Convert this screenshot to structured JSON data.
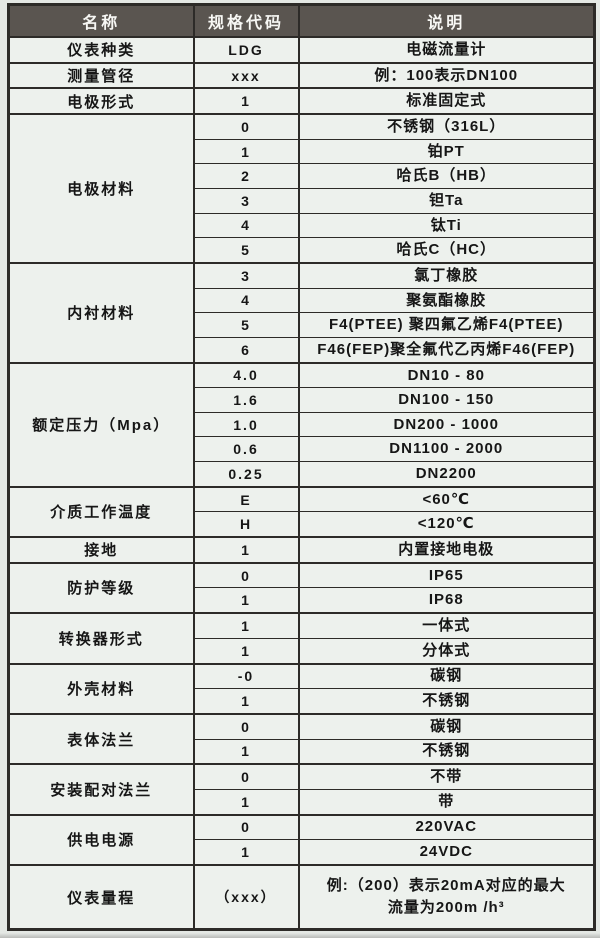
{
  "page": {
    "background_color": "#e4e8e4",
    "cell_background_color": "#edf1ed",
    "header_background_color": "#5a5550",
    "header_text_color": "#f7f7f4",
    "border_color": "#2d2b28",
    "body_text_color": "#161616"
  },
  "table": {
    "headers": [
      "名称",
      "规格代码",
      "说明"
    ],
    "groups": [
      {
        "name": "仪表种类",
        "rows": [
          {
            "code": "LDG",
            "desc": "电磁流量计"
          }
        ]
      },
      {
        "name": "测量管径",
        "rows": [
          {
            "code": "xxx",
            "desc": "例：100表示DN100"
          }
        ]
      },
      {
        "name": "电极形式",
        "rows": [
          {
            "code": "1",
            "desc": "标准固定式"
          }
        ]
      },
      {
        "name": "电极材料",
        "rows": [
          {
            "code": "0",
            "desc": "不锈钢（316L）"
          },
          {
            "code": "1",
            "desc": "铂PT"
          },
          {
            "code": "2",
            "desc": "哈氏B（HB）"
          },
          {
            "code": "3",
            "desc": "钽Ta"
          },
          {
            "code": "4",
            "desc": "钛Ti"
          },
          {
            "code": "5",
            "desc": "哈氏C（HC）"
          }
        ]
      },
      {
        "name": "内衬材料",
        "rows": [
          {
            "code": "3",
            "desc": "氯丁橡胶"
          },
          {
            "code": "4",
            "desc": "聚氨酯橡胶"
          },
          {
            "code": "5",
            "desc": "F4(PTEE) 聚四氟乙烯F4(PTEE)"
          },
          {
            "code": "6",
            "desc": "F46(FEP)聚全氟代乙丙烯F46(FEP)"
          }
        ]
      },
      {
        "name": "额定压力（Mpa）",
        "rows": [
          {
            "code": "4.0",
            "desc": "DN10 - 80"
          },
          {
            "code": "1.6",
            "desc": "DN100 - 150"
          },
          {
            "code": "1.0",
            "desc": "DN200 - 1000"
          },
          {
            "code": "0.6",
            "desc": "DN1100 - 2000"
          },
          {
            "code": "0.25",
            "desc": "DN2200"
          }
        ]
      },
      {
        "name": "介质工作温度",
        "rows": [
          {
            "code": "E",
            "desc": "<60℃"
          },
          {
            "code": "H",
            "desc": "<120℃"
          }
        ]
      },
      {
        "name": "接地",
        "rows": [
          {
            "code": "1",
            "desc": "内置接地电极"
          }
        ]
      },
      {
        "name": "防护等级",
        "rows": [
          {
            "code": "0",
            "desc": "IP65"
          },
          {
            "code": "1",
            "desc": "IP68"
          }
        ]
      },
      {
        "name": "转换器形式",
        "rows": [
          {
            "code": "1",
            "desc": "一体式"
          },
          {
            "code": "1",
            "desc": "分体式"
          }
        ]
      },
      {
        "name": "外壳材料",
        "rows": [
          {
            "code": "-0",
            "desc": "碳钢"
          },
          {
            "code": "1",
            "desc": "不锈钢"
          }
        ]
      },
      {
        "name": "表体法兰",
        "rows": [
          {
            "code": "0",
            "desc": "碳钢"
          },
          {
            "code": "1",
            "desc": "不锈钢"
          }
        ]
      },
      {
        "name": "安装配对法兰",
        "rows": [
          {
            "code": "0",
            "desc": "不带"
          },
          {
            "code": "1",
            "desc": "带"
          }
        ]
      },
      {
        "name": "供电电源",
        "rows": [
          {
            "code": "0",
            "desc": "220VAC"
          },
          {
            "code": "1",
            "desc": "24VDC"
          }
        ]
      },
      {
        "name": "仪表量程",
        "tall": true,
        "rows": [
          {
            "code": "（xxx）",
            "desc": "例:（200）表示20mA对应的最大\n流量为200m /h³"
          }
        ]
      }
    ]
  }
}
